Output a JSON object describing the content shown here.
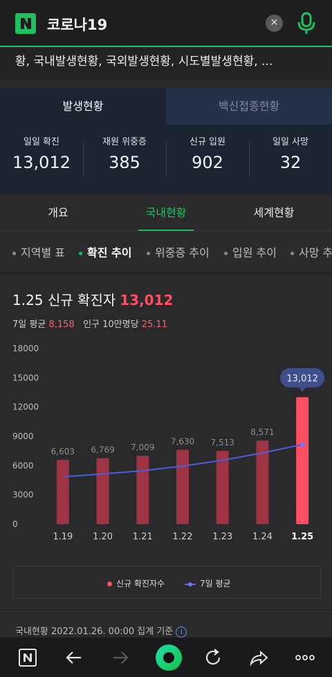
{
  "search": {
    "query": "코로나19",
    "logo_letter": "N"
  },
  "keywords": "황, 국내발생현황, 국외발생현황, 시도별발생현황, ...",
  "status_tabs": [
    "발생현황",
    "백신접종현황"
  ],
  "stats": [
    {
      "label": "일일 확진",
      "value": "13,012"
    },
    {
      "label": "재원 위중증",
      "value": "385"
    },
    {
      "label": "신규 입원",
      "value": "902"
    },
    {
      "label": "일일 사망",
      "value": "32"
    }
  ],
  "category_tabs": [
    "개요",
    "국내현황",
    "세계현황"
  ],
  "sub_tabs": [
    "지역별 표",
    "확진 추이",
    "위중증 추이",
    "입원 추이",
    "사망 추이"
  ],
  "headline": {
    "title": "1.25 신규 확진자",
    "count": "13,012"
  },
  "subline": {
    "avg_label": "7일 평균",
    "avg_value": "8,158",
    "pop_label": "인구 10만명당",
    "pop_value": "25.11"
  },
  "chart_data": {
    "type": "bar",
    "categories": [
      "1.19",
      "1.20",
      "1.21",
      "1.22",
      "1.23",
      "1.24",
      "1.25"
    ],
    "series": [
      {
        "name": "신규 확진자수",
        "values": [
          6603,
          6769,
          7009,
          7630,
          7513,
          8571,
          13012
        ]
      },
      {
        "name": "7일 평균",
        "type": "line",
        "values": [
          4850,
          5150,
          5480,
          5950,
          6550,
          7300,
          8158
        ]
      }
    ],
    "value_labels": [
      "6,603",
      "6,769",
      "7,009",
      "7,630",
      "7,513",
      "8,571",
      "13,012"
    ],
    "yticks": [
      "0",
      "3000",
      "6000",
      "9000",
      "12000",
      "15000",
      "18000"
    ],
    "ylim": [
      0,
      18000
    ],
    "colors": {
      "bar": "#9e3344",
      "bar_highlight": "#ff4f63",
      "line": "#4a5fe0",
      "bubble": "#3f4f8c"
    }
  },
  "legend": [
    "신규 확진자수",
    "7일 평균"
  ],
  "footnote": "국내현황 2022.01.26. 00:00 집계 기준"
}
